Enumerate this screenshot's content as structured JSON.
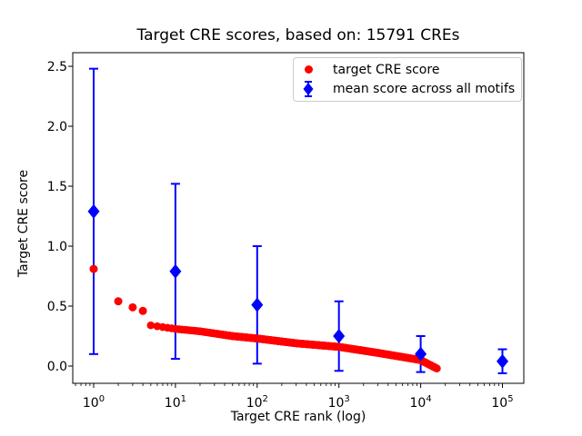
{
  "figure": {
    "background": "#ffffff"
  },
  "chart_data": {
    "type": "scatter",
    "title": "Target CRE scores, based on: 15791 CREs",
    "xlabel": "Target CRE rank (log)",
    "ylabel": "Target CRE score",
    "x_scale": "log",
    "xlim_log10": [
      -0.26,
      5.26
    ],
    "ylim": [
      -0.15,
      2.62
    ],
    "grid": false,
    "axis_color": "#000000",
    "x_ticks": [
      {
        "value": 1,
        "base": "10",
        "exp": "0"
      },
      {
        "value": 10,
        "base": "10",
        "exp": "1"
      },
      {
        "value": 100,
        "base": "10",
        "exp": "2"
      },
      {
        "value": 1000,
        "base": "10",
        "exp": "3"
      },
      {
        "value": 10000,
        "base": "10",
        "exp": "4"
      },
      {
        "value": 100000,
        "base": "10",
        "exp": "5"
      }
    ],
    "y_ticks": [
      {
        "value": 0.0,
        "label": "0.0"
      },
      {
        "value": 0.5,
        "label": "0.5"
      },
      {
        "value": 1.0,
        "label": "1.0"
      },
      {
        "value": 1.5,
        "label": "1.5"
      },
      {
        "value": 2.0,
        "label": "2.0"
      },
      {
        "value": 2.5,
        "label": "2.5"
      }
    ],
    "series": [
      {
        "name": "target CRE score",
        "color": "#ff0000",
        "marker": "circle",
        "head_points": [
          [
            1,
            0.81
          ],
          [
            2,
            0.54
          ],
          [
            3,
            0.49
          ],
          [
            4,
            0.46
          ]
        ],
        "tail_anchors": [
          [
            5,
            0.34
          ],
          [
            10,
            0.31
          ],
          [
            20,
            0.29
          ],
          [
            50,
            0.25
          ],
          [
            100,
            0.23
          ],
          [
            300,
            0.19
          ],
          [
            1000,
            0.16
          ],
          [
            3000,
            0.11
          ],
          [
            10000,
            0.05
          ],
          [
            15791,
            -0.02
          ]
        ],
        "tail_max_rank": 15791
      },
      {
        "name": "mean score across all motifs",
        "color": "#0000ff",
        "marker": "diamond",
        "points": [
          {
            "x": 1,
            "y": 1.29,
            "err": 1.19
          },
          {
            "x": 10,
            "y": 0.79,
            "err": 0.73
          },
          {
            "x": 100,
            "y": 0.51,
            "err": 0.49
          },
          {
            "x": 1000,
            "y": 0.25,
            "err": 0.29
          },
          {
            "x": 10000,
            "y": 0.1,
            "err": 0.15
          },
          {
            "x": 100000,
            "y": 0.04,
            "err": 0.1
          }
        ]
      }
    ],
    "legend": {
      "position": "upper right"
    }
  }
}
